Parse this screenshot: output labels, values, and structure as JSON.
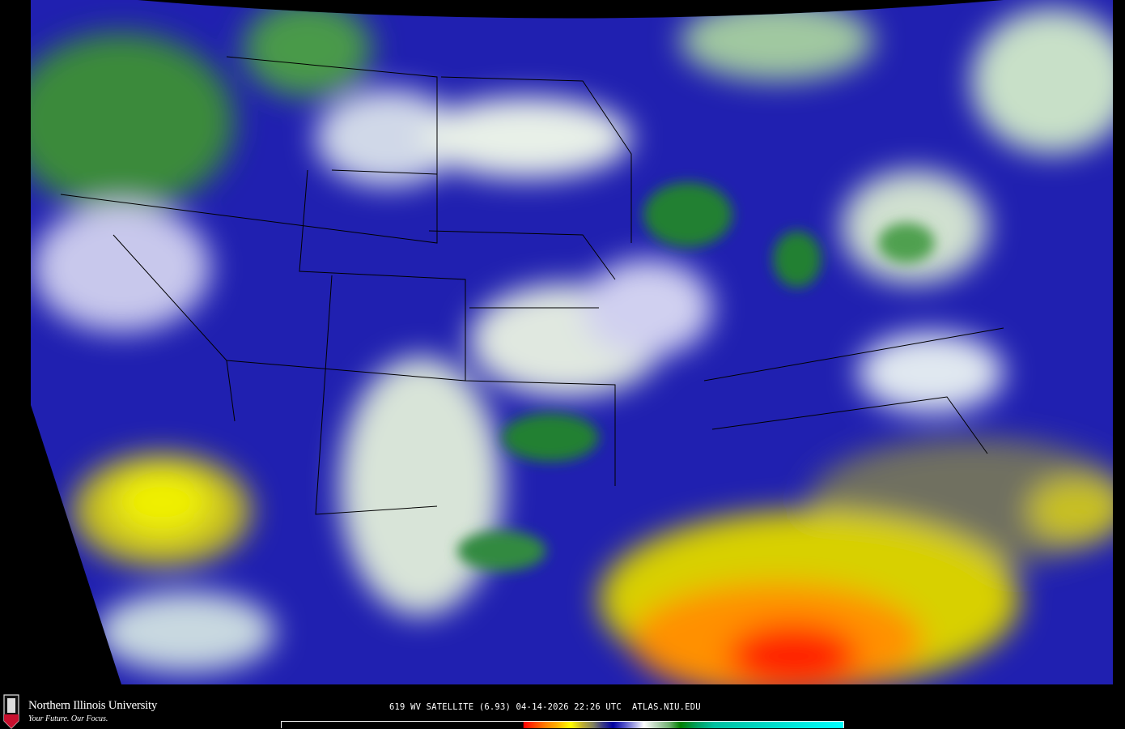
{
  "map": {
    "type": "water vapor satellite imagery",
    "region": "Continental United States"
  },
  "branding": {
    "university": "Northern Illinois University",
    "tagline": "Your Future. Our Focus.",
    "logo_text": "NIU"
  },
  "caption": "619 WV SATELLITE (6.93) 04-14-2026 22:26 UTC  ATLAS.NIU.EDU",
  "colorbar": {
    "colors": [
      "#ff0000",
      "#ff8000",
      "#ffff00",
      "#808060",
      "#0000a0",
      "#b0b0e8",
      "#ffffff",
      "#70b070",
      "#008000",
      "#00ffff"
    ]
  }
}
